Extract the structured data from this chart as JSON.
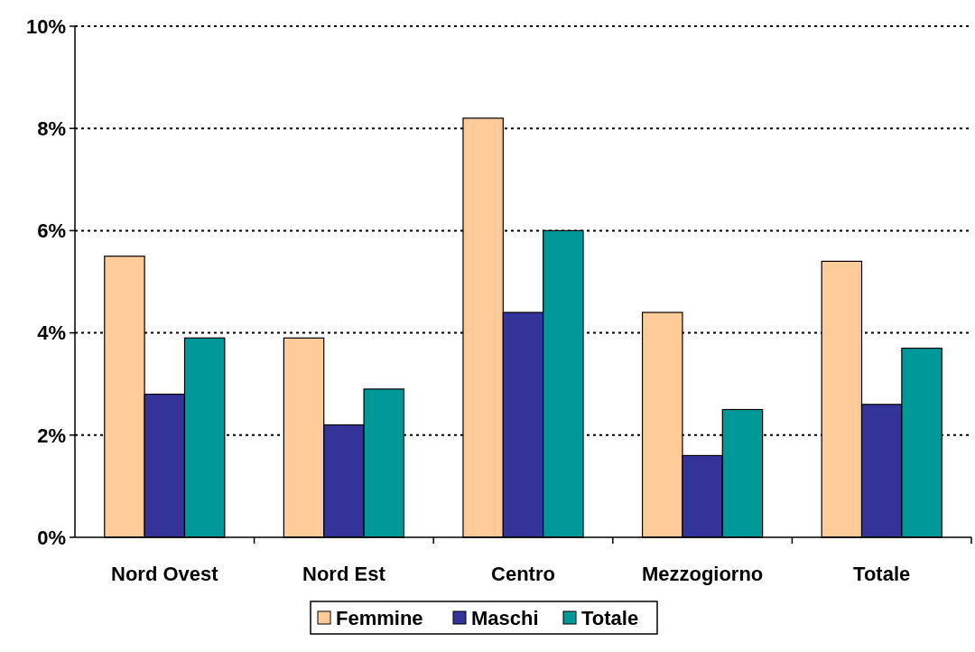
{
  "chart_data": {
    "type": "bar",
    "categories": [
      "Nord Ovest",
      "Nord Est",
      "Centro",
      "Mezzogiorno",
      "Totale"
    ],
    "series": [
      {
        "name": "Femmine",
        "color": "#ffcc99",
        "values": [
          5.5,
          3.9,
          8.2,
          4.4,
          5.4
        ]
      },
      {
        "name": "Maschi",
        "color": "#333399",
        "values": [
          2.8,
          2.2,
          4.4,
          1.6,
          2.6
        ]
      },
      {
        "name": "Totale",
        "color": "#009999",
        "values": [
          3.9,
          2.9,
          6.0,
          2.5,
          3.7
        ]
      }
    ],
    "ylim": [
      0,
      10
    ],
    "yticks": [
      {
        "value": 0,
        "label": "0%"
      },
      {
        "value": 2,
        "label": "2%"
      },
      {
        "value": 4,
        "label": "4%"
      },
      {
        "value": 6,
        "label": "6%"
      },
      {
        "value": 8,
        "label": "8%"
      },
      {
        "value": 10,
        "label": "10%"
      }
    ],
    "grid": "y",
    "legend": "bottom"
  }
}
